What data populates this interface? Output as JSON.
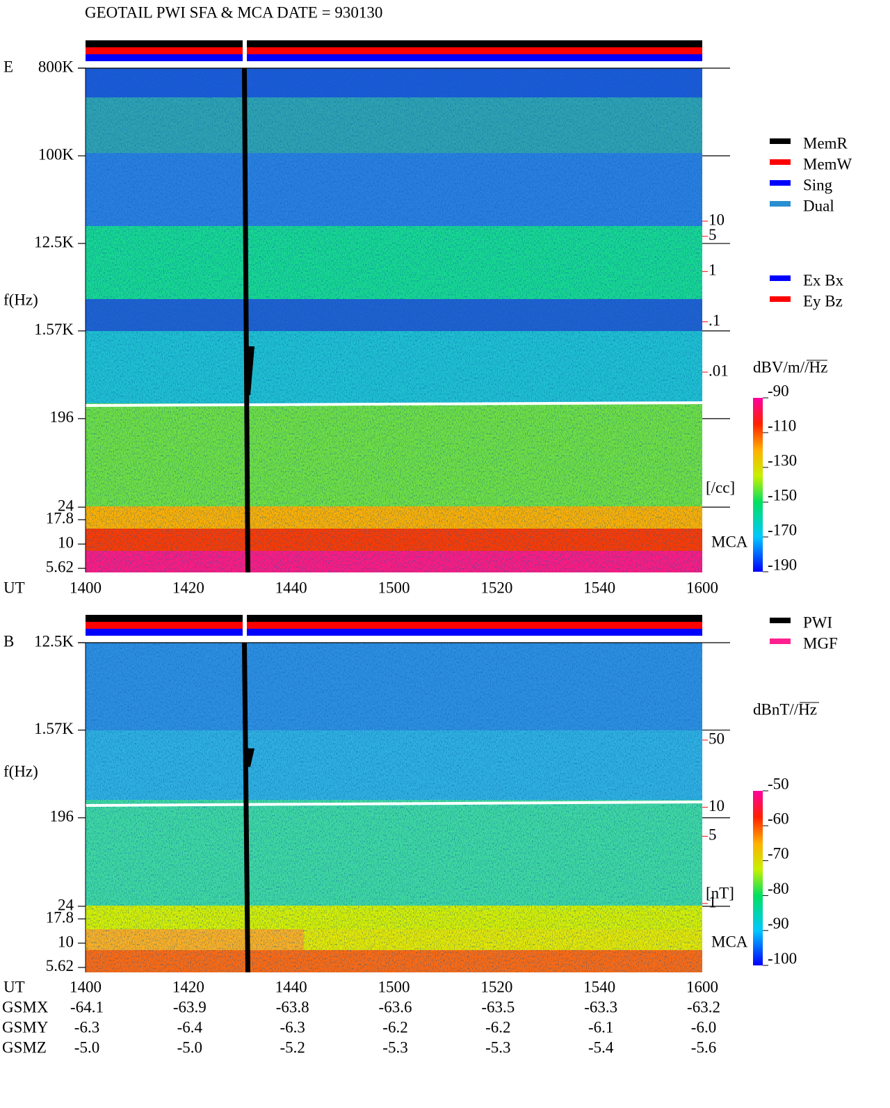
{
  "header": {
    "title": "GEOTAIL  PWI SFA & MCA   DATE = 930130"
  },
  "chart_data": [
    {
      "type": "spectrogram",
      "panel_label": "E",
      "y_label": "f(Hz)",
      "x_label": "UT",
      "categories": [
        "1400",
        "1420",
        "1440",
        "1500",
        "1520",
        "1540",
        "1600"
      ],
      "yscale": "log",
      "ylim": [
        5.1,
        800000
      ],
      "yticks": [
        {
          "value": 800000,
          "label": "800K"
        },
        {
          "value": 100000,
          "label": "100K"
        },
        {
          "value": 12500,
          "label": "12.5K"
        },
        {
          "value": 1570,
          "label": "1.57K"
        },
        196,
        24,
        17.8,
        10,
        5.62
      ],
      "colorbar": {
        "label": "dBV/m//Hz",
        "lim": [
          -190,
          -90
        ],
        "ticks": [
          -90,
          -110,
          -130,
          -150,
          -170,
          -190
        ]
      },
      "side_scale": {
        "unit_label": "[/cc]",
        "color": "#ff0000",
        "lim": [
          0.01,
          10
        ],
        "ticks": [
          10,
          5,
          1,
          {
            "value": 0.1,
            "label": ".1"
          },
          {
            "value": 0.01,
            "label": ".01"
          }
        ]
      },
      "mca_label": "MCA",
      "legends": [
        [
          {
            "name": "MemR",
            "color": "#000000"
          },
          {
            "name": "MemW",
            "color": "#ff0000"
          },
          {
            "name": "Sing",
            "color": "#0000ff"
          },
          {
            "name": "Dual",
            "color": "#2a8fd0"
          }
        ],
        [
          {
            "name": "Ex Bx",
            "color": "#0000ff"
          },
          {
            "name": "Ey Bz",
            "color": "#ff0000"
          }
        ]
      ]
    },
    {
      "type": "spectrogram",
      "panel_label": "B",
      "y_label": "f(Hz)",
      "x_label": "UT",
      "categories": [
        "1400",
        "1420",
        "1440",
        "1500",
        "1520",
        "1540",
        "1600"
      ],
      "yscale": "log",
      "ylim": [
        5,
        12500
      ],
      "yticks": [
        {
          "value": 12500,
          "label": "12.5K"
        },
        {
          "value": 1570,
          "label": "1.57K"
        },
        196,
        24,
        17.8,
        10,
        5.62
      ],
      "colorbar": {
        "label": "dBnT//Hz",
        "lim": [
          -100,
          -50
        ],
        "ticks": [
          -50,
          -60,
          -70,
          -80,
          -90,
          -100
        ]
      },
      "side_scale": {
        "unit_label": "[nT]",
        "color": "#ff0000",
        "lim": [
          1,
          50
        ],
        "ticks": [
          50,
          10,
          5,
          1
        ]
      },
      "mca_label": "MCA",
      "legends": [
        [
          {
            "name": "PWI",
            "color": "#000000"
          },
          {
            "name": "MGF",
            "color": "#ff1f8f"
          }
        ]
      ]
    }
  ],
  "orbit": {
    "rows": [
      {
        "name": "GSMX",
        "values": [
          "-64.1",
          "-63.9",
          "-63.8",
          "-63.6",
          "-63.5",
          "-63.3",
          "-63.2"
        ]
      },
      {
        "name": "GSMY",
        "values": [
          "-6.3",
          "-6.4",
          "-6.3",
          "-6.2",
          "-6.2",
          "-6.1",
          "-6.0"
        ]
      },
      {
        "name": "GSMZ",
        "values": [
          "-5.0",
          "-5.0",
          "-5.2",
          "-5.3",
          "-5.3",
          "-5.4",
          "-5.6"
        ]
      }
    ]
  }
}
